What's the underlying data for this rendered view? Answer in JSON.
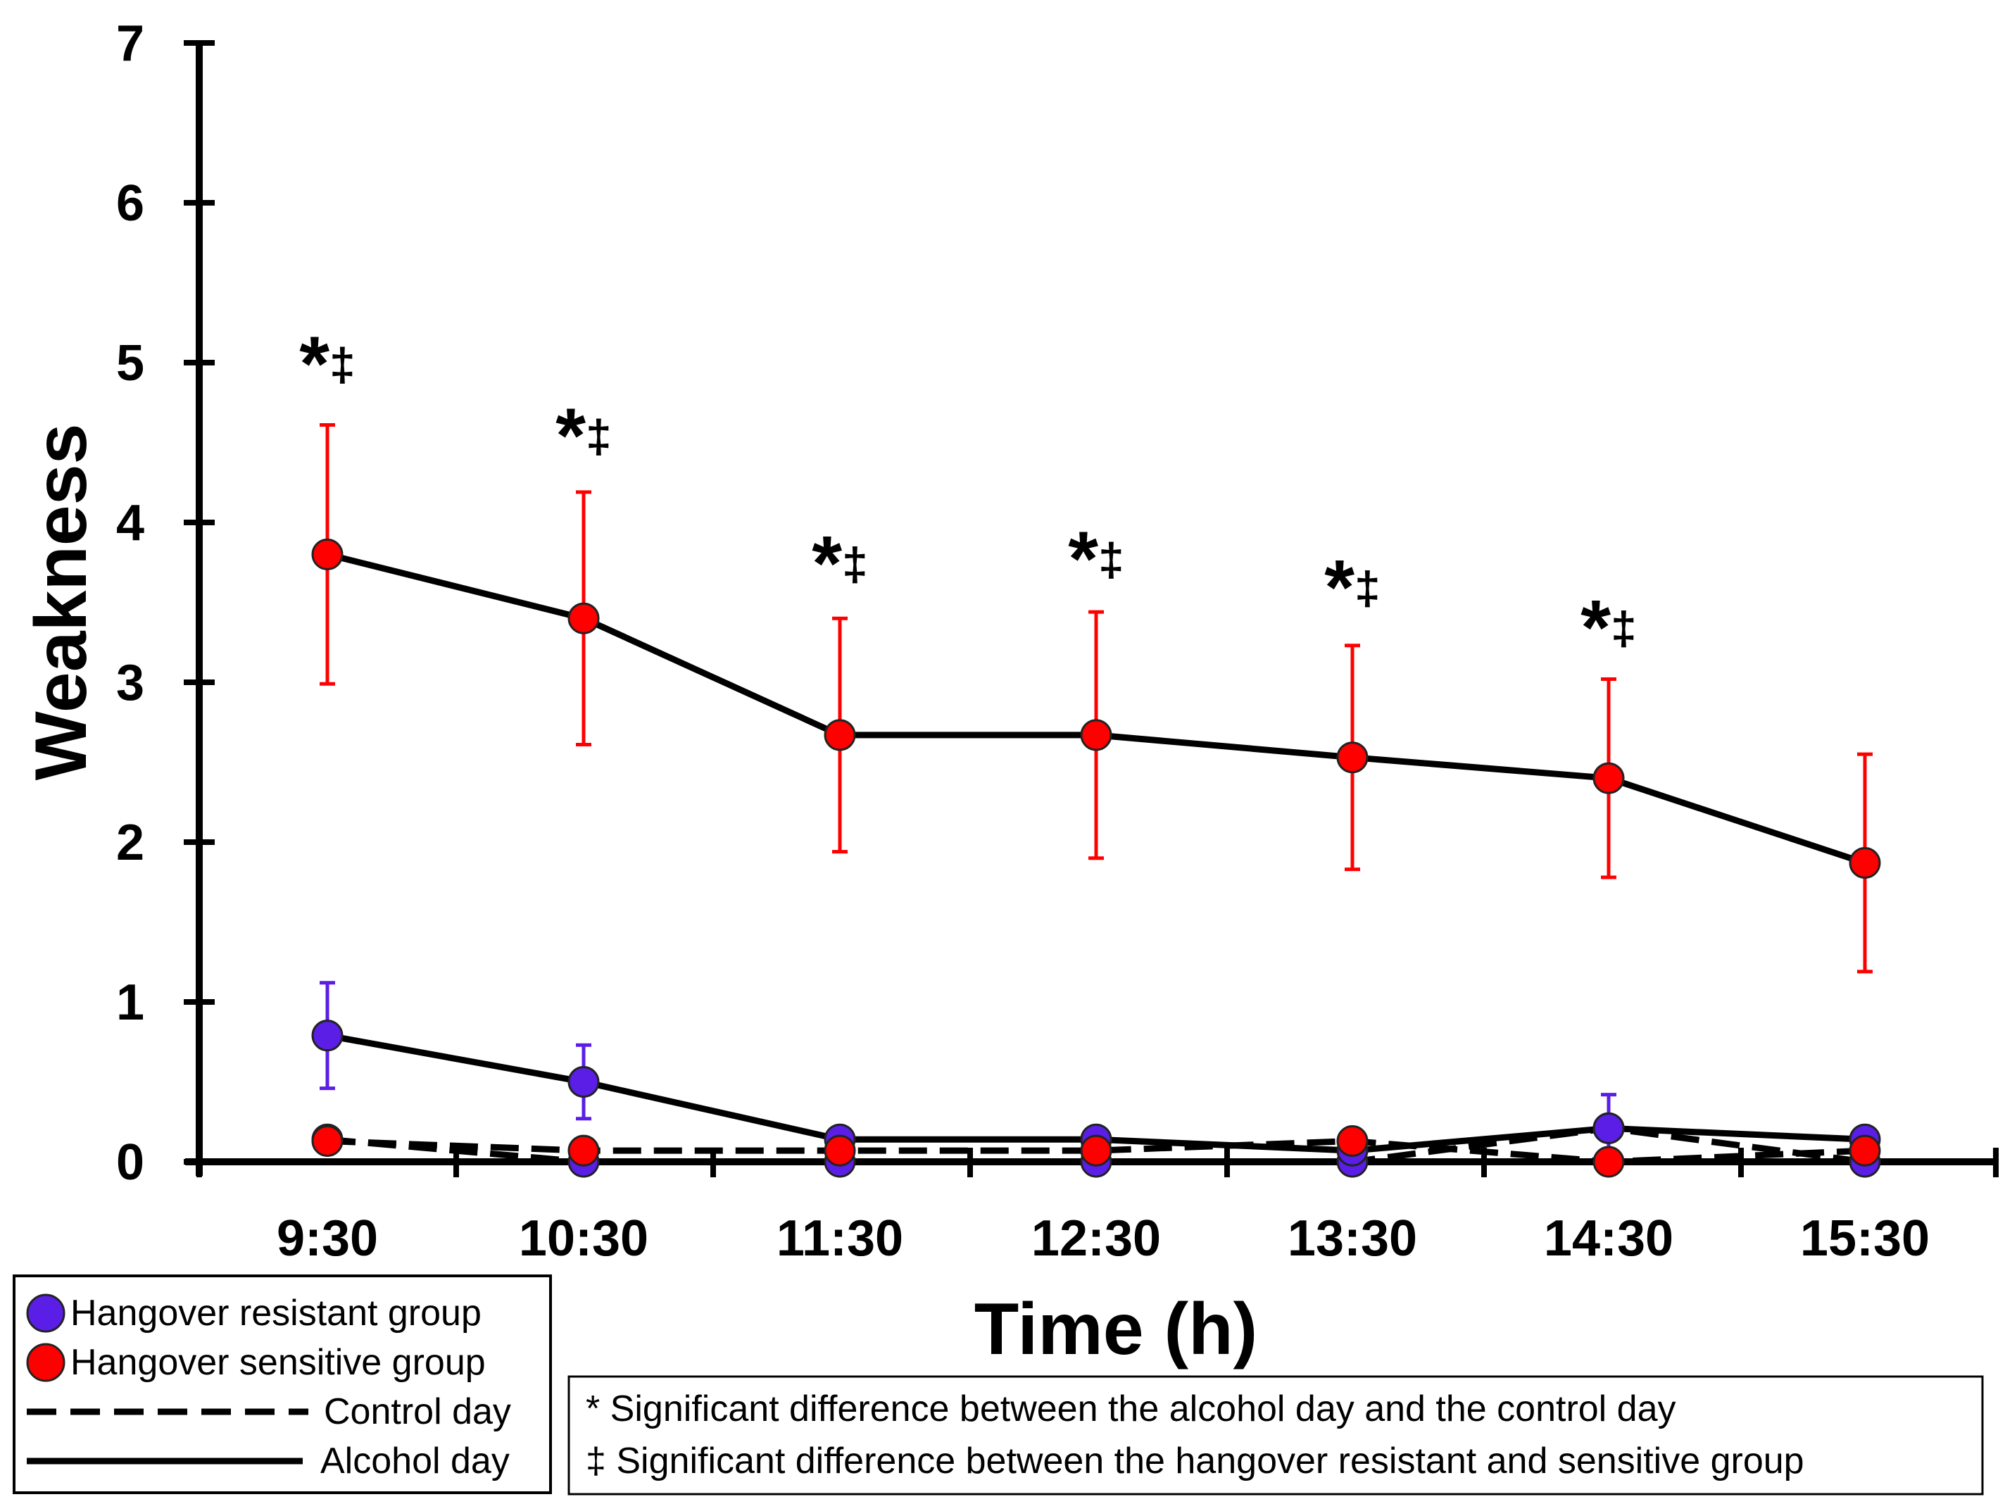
{
  "chart_data": {
    "type": "line",
    "title": "",
    "xlabel": "Time (h)",
    "ylabel": "Weakness",
    "categories": [
      "9:30",
      "10:30",
      "11:30",
      "12:30",
      "13:30",
      "14:30",
      "15:30"
    ],
    "ylim": [
      0,
      7
    ],
    "yticks": [
      0,
      1,
      2,
      3,
      4,
      5,
      6,
      7
    ],
    "grid": false,
    "series": [
      {
        "name": "Hangover sensitive group - Alcohol day",
        "group": "sensitive",
        "day": "alcohol",
        "color": "#ff0000",
        "values": [
          3.8,
          3.4,
          2.67,
          2.67,
          2.53,
          2.4,
          1.87
        ],
        "errors": [
          0.81,
          0.79,
          0.73,
          0.77,
          0.7,
          0.62,
          0.68
        ]
      },
      {
        "name": "Hangover resistant group - Alcohol day",
        "group": "resistant",
        "day": "alcohol",
        "color": "#5a1ee6",
        "values": [
          0.79,
          0.5,
          0.14,
          0.14,
          0.07,
          0.21,
          0.14
        ],
        "errors": [
          0.33,
          0.23,
          0.0,
          0.0,
          0.0,
          0.21,
          0.0
        ]
      },
      {
        "name": "Hangover resistant group - Control day",
        "group": "resistant",
        "day": "control",
        "color": "#5a1ee6",
        "values": [
          0.14,
          0.0,
          0.0,
          0.0,
          0.0,
          0.21,
          0.0
        ],
        "errors": [
          0,
          0,
          0,
          0,
          0,
          0,
          0
        ]
      },
      {
        "name": "Hangover sensitive group - Control day",
        "group": "sensitive",
        "day": "control",
        "color": "#ff0000",
        "values": [
          0.13,
          0.07,
          0.07,
          0.07,
          0.13,
          0.0,
          0.07
        ],
        "errors": [
          0,
          0,
          0,
          0,
          0,
          0,
          0
        ]
      }
    ],
    "significance": [
      {
        "category": "9:30",
        "label": "*‡",
        "y": 4.95
      },
      {
        "category": "10:30",
        "label": "*‡",
        "y": 4.5
      },
      {
        "category": "11:30",
        "label": "*‡",
        "y": 3.7
      },
      {
        "category": "12:30",
        "label": "*‡",
        "y": 3.73
      },
      {
        "category": "13:30",
        "label": "*‡",
        "y": 3.55
      },
      {
        "category": "14:30",
        "label": "*‡",
        "y": 3.3
      }
    ],
    "legend": {
      "position": "bottom-left",
      "entries": [
        {
          "label": "Hangover resistant group",
          "kind": "marker",
          "color": "#5a1ee6"
        },
        {
          "label": "Hangover sensitive group",
          "kind": "marker",
          "color": "#ff0000"
        },
        {
          "label": "Control day",
          "kind": "dashed-line",
          "color": "#000000"
        },
        {
          "label": "Alcohol day",
          "kind": "solid-line",
          "color": "#000000"
        }
      ]
    },
    "notes": [
      "* Significant difference between the alcohol day and the control day",
      "‡ Significant difference between the hangover resistant and sensitive group"
    ]
  }
}
